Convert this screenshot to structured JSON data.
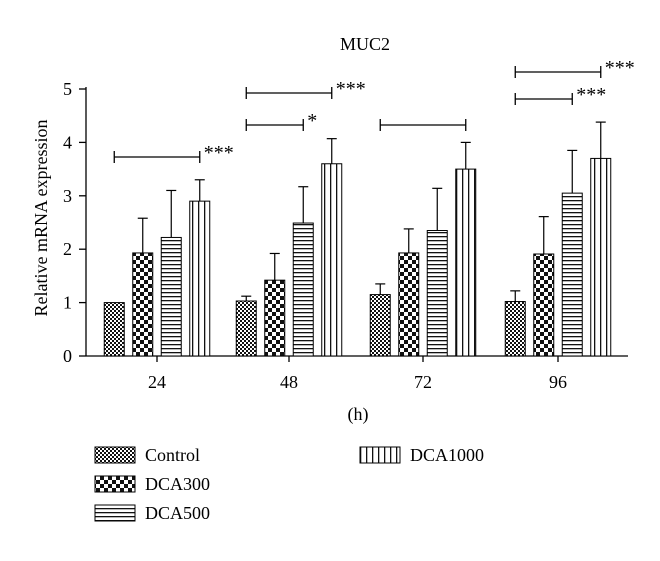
{
  "chart_data": {
    "type": "bar",
    "title": "MUC2",
    "xlabel": "(h)",
    "ylabel": "Relative mRNA expression",
    "ylim": [
      0,
      5
    ],
    "yticks": [
      0,
      1,
      2,
      3,
      4,
      5
    ],
    "categories": [
      "24",
      "48",
      "72",
      "96"
    ],
    "grid": false,
    "legend_position": "bottom",
    "error_bars": true,
    "series": [
      {
        "name": "Control",
        "pattern": "checker-fine",
        "values": [
          1.0,
          1.03,
          1.15,
          1.02
        ],
        "errors": [
          0.0,
          0.09,
          0.2,
          0.2
        ]
      },
      {
        "name": "DCA300",
        "pattern": "checker-bold",
        "values": [
          1.93,
          1.42,
          1.93,
          1.91
        ],
        "errors": [
          0.65,
          0.5,
          0.45,
          0.7
        ]
      },
      {
        "name": "DCA500",
        "pattern": "horizontal-lines",
        "values": [
          2.22,
          2.49,
          2.35,
          3.05
        ],
        "errors": [
          0.88,
          0.68,
          0.79,
          0.8
        ]
      },
      {
        "name": "DCA1000",
        "pattern": "vertical-lines",
        "values": [
          2.9,
          3.6,
          3.5,
          3.7
        ],
        "errors": [
          0.4,
          0.47,
          0.5,
          0.68
        ]
      }
    ],
    "significance": [
      {
        "category": "24",
        "from_series": "Control",
        "to_series": "DCA1000",
        "level": 1,
        "label": "***"
      },
      {
        "category": "48",
        "from_series": "Control",
        "to_series": "DCA500",
        "level": 1,
        "label": "*"
      },
      {
        "category": "48",
        "from_series": "Control",
        "to_series": "DCA1000",
        "level": 2,
        "label": "***"
      },
      {
        "category": "72",
        "from_series": "Control",
        "to_series": "DCA1000",
        "level": 1,
        "label": ""
      },
      {
        "category": "96",
        "from_series": "Control",
        "to_series": "DCA500",
        "level": 1,
        "label": "***"
      },
      {
        "category": "96",
        "from_series": "Control",
        "to_series": "DCA1000",
        "level": 2,
        "label": "***"
      }
    ]
  }
}
